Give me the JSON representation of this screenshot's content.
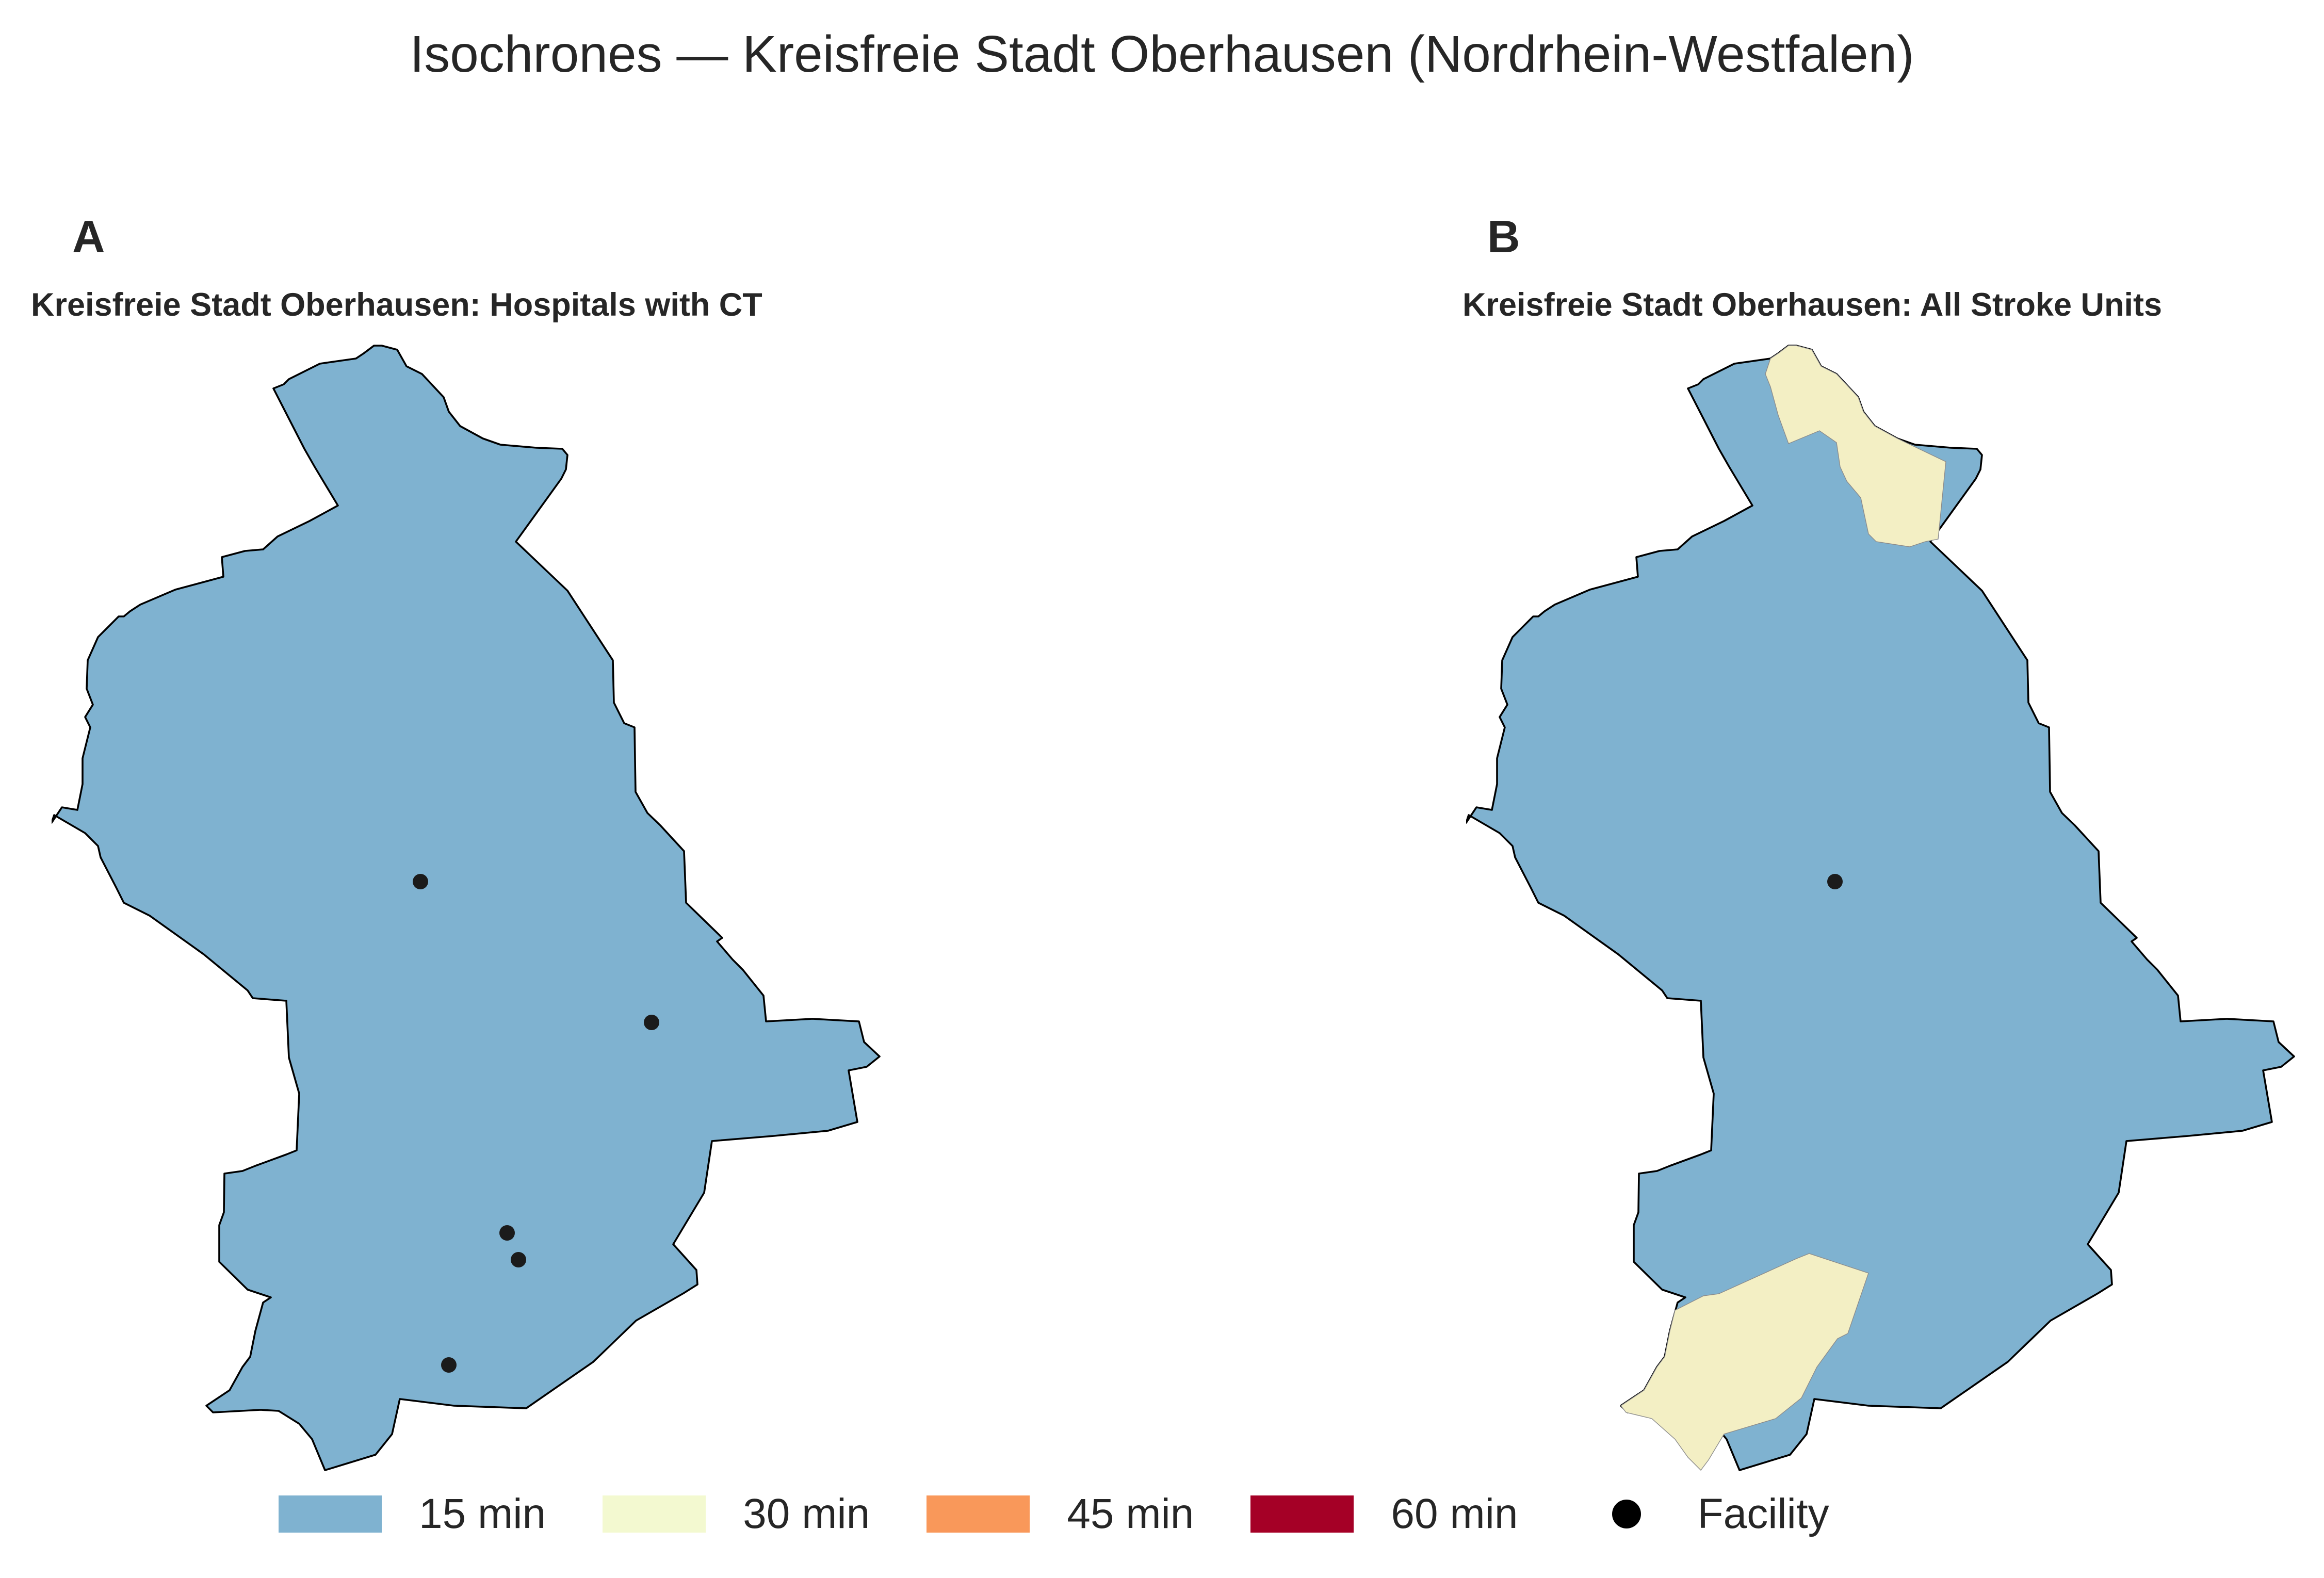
{
  "figure": {
    "title": "Isochrones — Kreisfreie Stadt Oberhausen (Nordrhein-Westfalen)"
  },
  "panels": [
    {
      "letter": "A",
      "title": "Kreisfreie Stadt Oberhausen: Hospitals with CT",
      "zones_present": [
        "15 min"
      ],
      "facility_count": 5
    },
    {
      "letter": "B",
      "title": "Kreisfreie Stadt Oberhausen: All Stroke Units",
      "zones_present": [
        "15 min",
        "30 min"
      ],
      "facility_count": 1
    }
  ],
  "legend": {
    "items": [
      {
        "label": "15 min",
        "color": "#7fb2d0"
      },
      {
        "label": "30 min",
        "color": "#f3f9d0"
      },
      {
        "label": "45 min",
        "color": "#f9985a"
      },
      {
        "label": "60 min",
        "color": "#a50026"
      }
    ],
    "facility_label": "Facility",
    "facility_color": "#000000"
  }
}
